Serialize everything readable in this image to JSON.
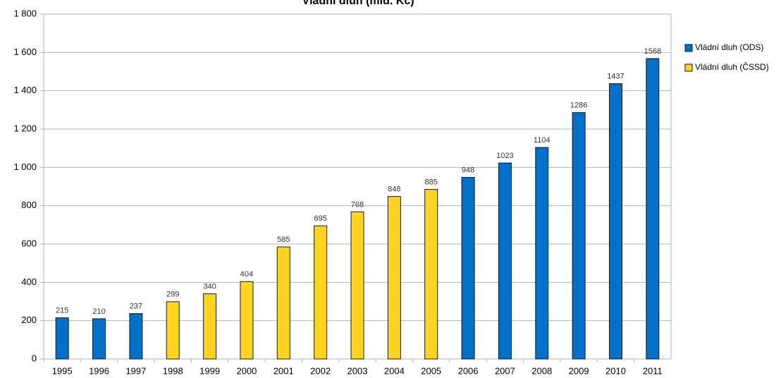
{
  "chart_data": {
    "type": "bar",
    "title": "Vládní dluh (mld. Kč)",
    "categories": [
      "1995",
      "1996",
      "1997",
      "1998",
      "1999",
      "2000",
      "2001",
      "2002",
      "2003",
      "2004",
      "2005",
      "2006",
      "2007",
      "2008",
      "2009",
      "2010",
      "2011"
    ],
    "series": [
      {
        "name": "Vládní dluh (ODS)",
        "color": "#0070c8",
        "values": [
          215,
          210,
          237,
          null,
          null,
          null,
          null,
          null,
          null,
          null,
          null,
          948,
          1023,
          1104,
          1286,
          1437,
          1568
        ]
      },
      {
        "name": "Vládní dluh (ČSSD)",
        "color": "#ffd320",
        "values": [
          null,
          null,
          null,
          299,
          340,
          404,
          585,
          695,
          768,
          848,
          885,
          null,
          null,
          null,
          null,
          null,
          null
        ]
      }
    ],
    "ylim": [
      0,
      1800
    ],
    "yticks": [
      0,
      200,
      400,
      600,
      800,
      {
        "value": 1000,
        "label": "1 000"
      },
      {
        "value": 1200,
        "label": "1 200"
      },
      {
        "value": 1400,
        "label": "1 400"
      },
      {
        "value": 1600,
        "label": "1 600"
      },
      {
        "value": 1800,
        "label": "1 800"
      }
    ],
    "grid": true,
    "legend": "right"
  }
}
